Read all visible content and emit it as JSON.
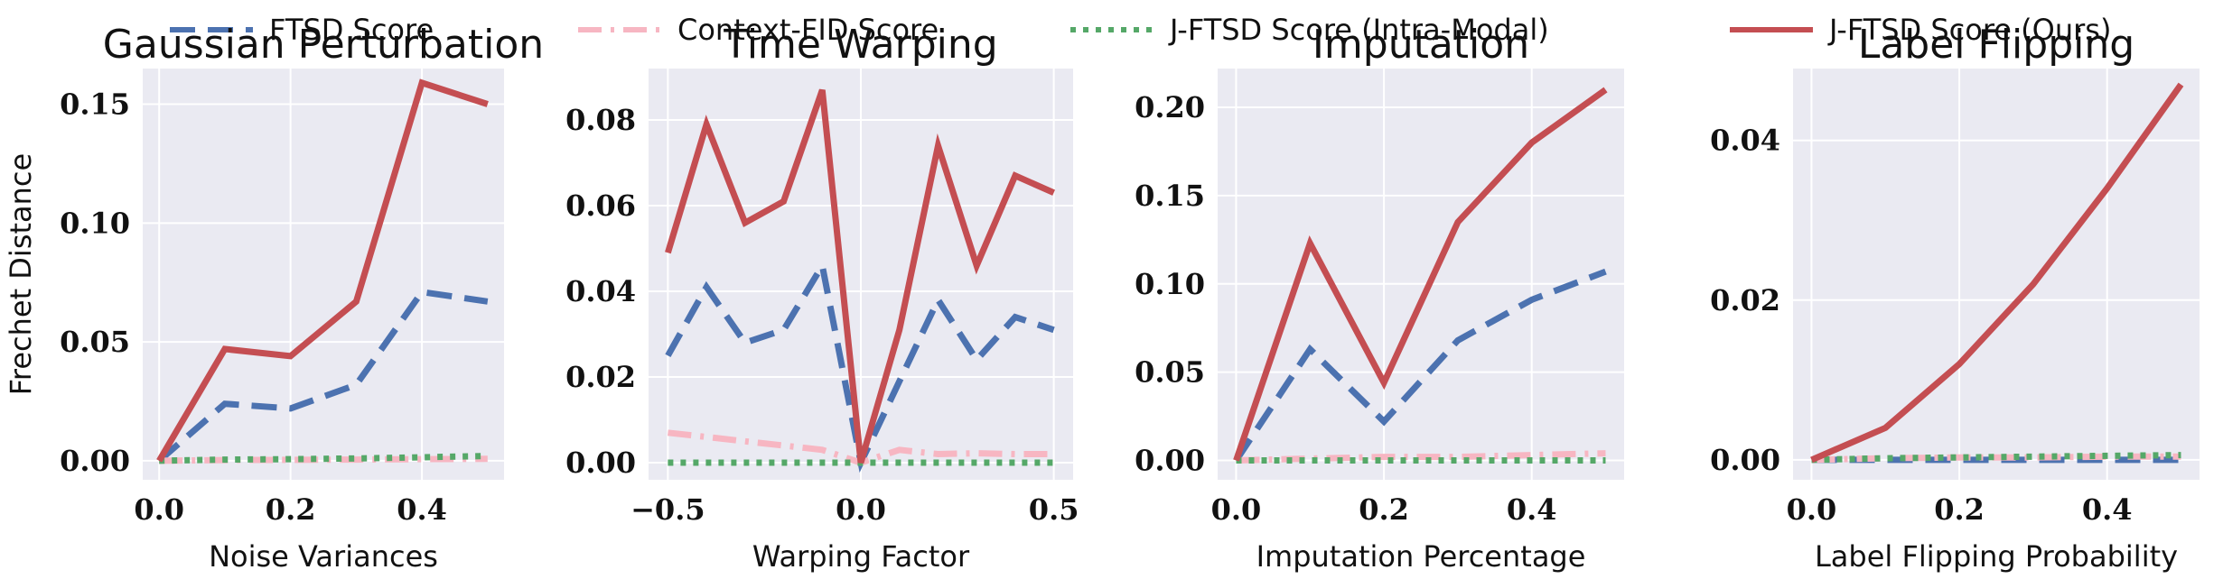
{
  "legend": [
    {
      "key": "ftsd",
      "label": "FTSD Score",
      "color": "#4c72b0",
      "dash": "28 14"
    },
    {
      "key": "cfid",
      "label": "Context-FID Score",
      "color": "#f7b6c2",
      "dash": "26 10 4 10"
    },
    {
      "key": "jintra",
      "label": "J-FTSD Score (Intra-Modal)",
      "color": "#55a868",
      "dash": "6 8"
    },
    {
      "key": "jours",
      "label": "J-FTSD Score (Ours)",
      "color": "#c44e52",
      "dash": ""
    }
  ],
  "chart_data": [
    {
      "type": "line",
      "title": "Gaussian Perturbation",
      "xlabel": "Noise Variances",
      "ylabel": "Frechet Distance",
      "xlim": [
        -0.025,
        0.525
      ],
      "ylim": [
        -0.008,
        0.165
      ],
      "xticks": [
        0.0,
        0.2,
        0.4
      ],
      "xtick_labels": [
        "0.0",
        "0.2",
        "0.4"
      ],
      "yticks": [
        0.0,
        0.05,
        0.1,
        0.15
      ],
      "ytick_labels": [
        "0.00",
        "0.05",
        "0.10",
        "0.15"
      ],
      "x": [
        0.0,
        0.1,
        0.2,
        0.3,
        0.4,
        0.5
      ],
      "series": [
        {
          "name": "FTSD Score",
          "values": [
            0.0,
            0.024,
            0.022,
            0.032,
            0.071,
            0.067
          ]
        },
        {
          "name": "Context-FID Score",
          "values": [
            0.0,
            0.0003,
            0.0004,
            0.0005,
            0.0007,
            0.0008
          ]
        },
        {
          "name": "J-FTSD Score (Intra-Modal)",
          "values": [
            0.0,
            0.0005,
            0.0007,
            0.001,
            0.0015,
            0.002
          ]
        },
        {
          "name": "J-FTSD Score (Ours)",
          "values": [
            0.0,
            0.047,
            0.044,
            0.067,
            0.159,
            0.15
          ]
        }
      ]
    },
    {
      "type": "line",
      "title": "Time Warping",
      "xlabel": "Warping Factor",
      "ylabel": "",
      "xlim": [
        -0.55,
        0.55
      ],
      "ylim": [
        -0.004,
        0.092
      ],
      "xticks": [
        -0.5,
        0.0,
        0.5
      ],
      "xtick_labels": [
        "−0.5",
        "0.0",
        "0.5"
      ],
      "yticks": [
        0.0,
        0.02,
        0.04,
        0.06,
        0.08
      ],
      "ytick_labels": [
        "0.00",
        "0.02",
        "0.04",
        "0.06",
        "0.08"
      ],
      "x": [
        -0.5,
        -0.4,
        -0.3,
        -0.2,
        -0.1,
        0.0,
        0.1,
        0.2,
        0.3,
        0.4,
        0.5
      ],
      "series": [
        {
          "name": "FTSD Score",
          "values": [
            0.025,
            0.041,
            0.028,
            0.031,
            0.046,
            0.0,
            0.019,
            0.038,
            0.024,
            0.034,
            0.031
          ]
        },
        {
          "name": "Context-FID Score",
          "values": [
            0.007,
            0.006,
            0.005,
            0.004,
            0.003,
            0.0,
            0.003,
            0.002,
            0.0022,
            0.002,
            0.002
          ]
        },
        {
          "name": "J-FTSD Score (Intra-Modal)",
          "values": [
            0.0,
            0.0,
            0.0,
            0.0,
            0.0,
            0.0,
            0.0,
            0.0,
            0.0,
            0.0,
            0.0
          ]
        },
        {
          "name": "J-FTSD Score (Ours)",
          "values": [
            0.049,
            0.079,
            0.056,
            0.061,
            0.087,
            0.0,
            0.031,
            0.074,
            0.046,
            0.067,
            0.063
          ]
        }
      ]
    },
    {
      "type": "line",
      "title": "Imputation",
      "xlabel": "Imputation Percentage",
      "ylabel": "",
      "xlim": [
        -0.025,
        0.525
      ],
      "ylim": [
        -0.011,
        0.222
      ],
      "xticks": [
        0.0,
        0.2,
        0.4
      ],
      "xtick_labels": [
        "0.0",
        "0.2",
        "0.4"
      ],
      "yticks": [
        0.0,
        0.05,
        0.1,
        0.15,
        0.2
      ],
      "ytick_labels": [
        "0.00",
        "0.05",
        "0.10",
        "0.15",
        "0.20"
      ],
      "x": [
        0.0,
        0.1,
        0.2,
        0.3,
        0.4,
        0.5
      ],
      "series": [
        {
          "name": "FTSD Score",
          "values": [
            0.0,
            0.063,
            0.022,
            0.068,
            0.091,
            0.107
          ]
        },
        {
          "name": "Context-FID Score",
          "values": [
            0.0,
            0.001,
            0.002,
            0.002,
            0.003,
            0.004
          ]
        },
        {
          "name": "J-FTSD Score (Intra-Modal)",
          "values": [
            0.0,
            0.0,
            0.0,
            0.0,
            0.0,
            0.0
          ]
        },
        {
          "name": "J-FTSD Score (Ours)",
          "values": [
            0.0,
            0.123,
            0.044,
            0.135,
            0.18,
            0.21
          ]
        }
      ]
    },
    {
      "type": "line",
      "title": "Label Flipping",
      "xlabel": "Label Flipping Probability",
      "ylabel": "",
      "xlim": [
        -0.025,
        0.525
      ],
      "ylim": [
        -0.0025,
        0.049
      ],
      "xticks": [
        0.0,
        0.2,
        0.4
      ],
      "xtick_labels": [
        "0.0",
        "0.2",
        "0.4"
      ],
      "yticks": [
        0.0,
        0.02,
        0.04
      ],
      "ytick_labels": [
        "0.00",
        "0.02",
        "0.04"
      ],
      "x": [
        0.0,
        0.1,
        0.2,
        0.3,
        0.4,
        0.5
      ],
      "series": [
        {
          "name": "FTSD Score",
          "values": [
            0.0,
            0.0,
            0.0,
            0.0,
            0.0,
            0.0
          ]
        },
        {
          "name": "Context-FID Score",
          "values": [
            0.0,
            0.0002,
            0.0003,
            0.0003,
            0.0004,
            0.0004
          ]
        },
        {
          "name": "J-FTSD Score (Intra-Modal)",
          "values": [
            0.0,
            0.0002,
            0.0003,
            0.0004,
            0.0005,
            0.0006
          ]
        },
        {
          "name": "J-FTSD Score (Ours)",
          "values": [
            0.0,
            0.004,
            0.012,
            0.022,
            0.034,
            0.047
          ]
        }
      ]
    }
  ]
}
